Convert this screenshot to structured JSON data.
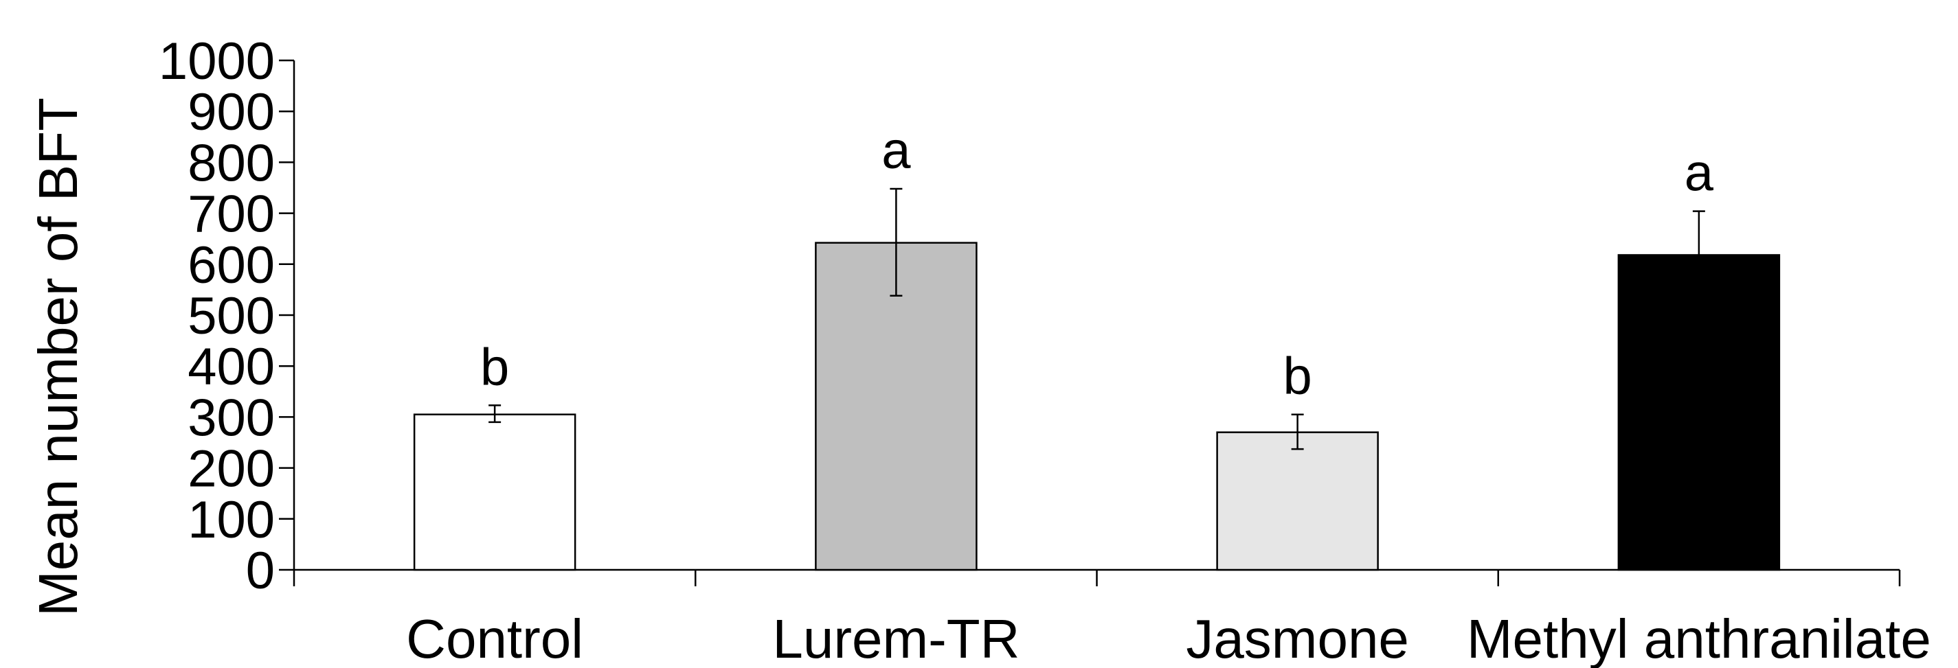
{
  "chart_data": {
    "type": "bar",
    "title": "",
    "xlabel": "",
    "ylabel": "Mean number of BFT",
    "ylim": [
      0,
      1000
    ],
    "yticks": [
      "0",
      "100",
      "200",
      "300",
      "400",
      "500",
      "600",
      "700",
      "800",
      "900",
      "1000"
    ],
    "grid": false,
    "legend": "none",
    "categories": [
      "Control",
      "Lurem-TR",
      "Jasmone",
      "Methyl anthranilate"
    ],
    "values": [
      305,
      642,
      270,
      618
    ],
    "error_low": [
      290,
      538,
      237,
      531
    ],
    "error_high": [
      323,
      748,
      305,
      704
    ],
    "significance": [
      "b",
      "a",
      "b",
      "a"
    ],
    "bar_colors": [
      "#ffffff",
      "#bfbfbf",
      "#e6e6e6",
      "#000000"
    ],
    "bar_edge_color": "#000000"
  }
}
